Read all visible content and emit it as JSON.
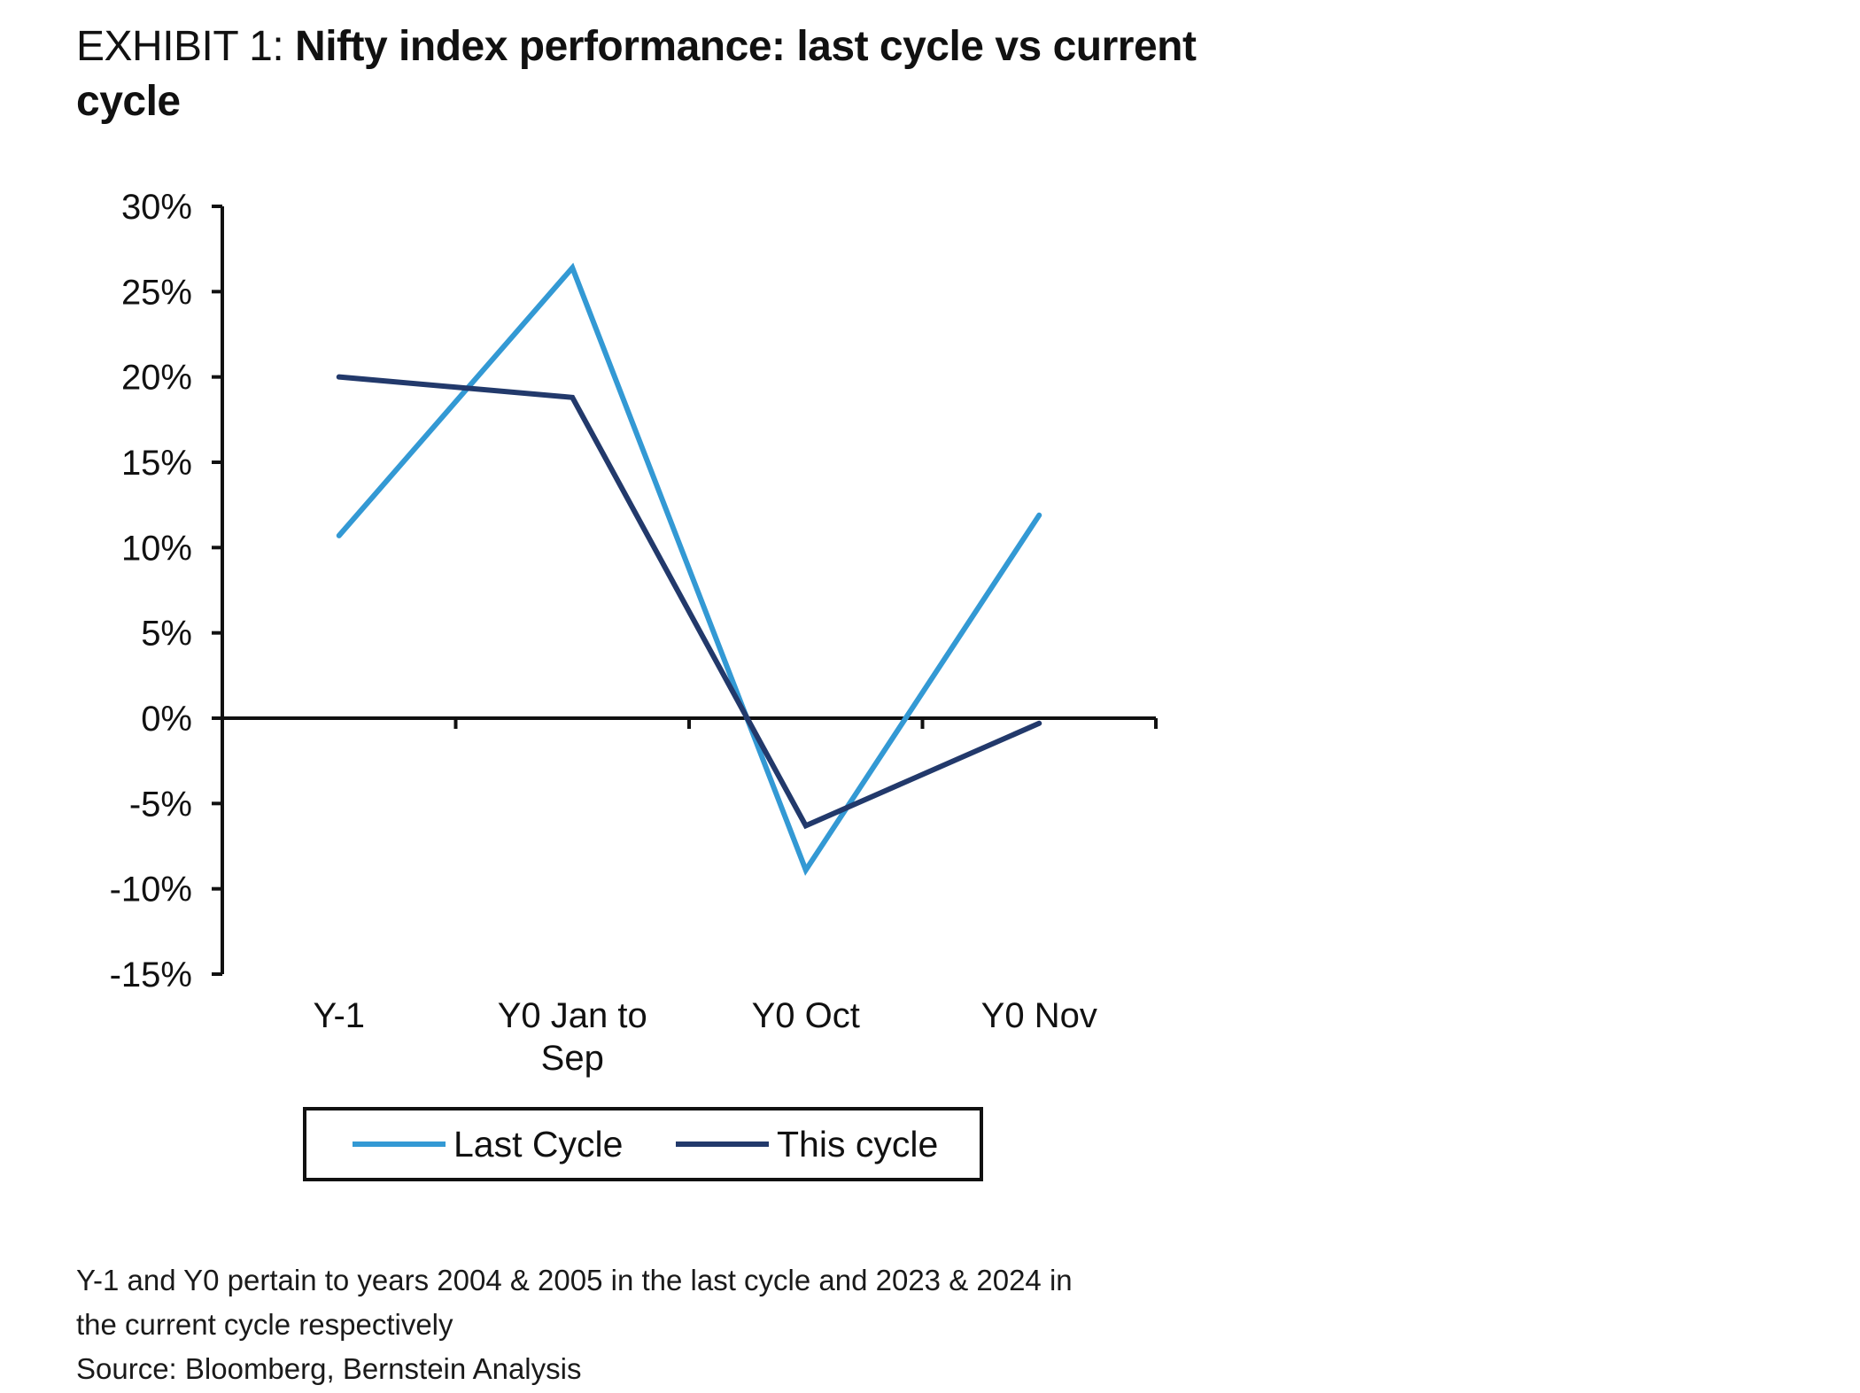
{
  "title": {
    "prefix": "EXHIBIT 1:",
    "main": "Nifty index performance: last cycle vs current cycle"
  },
  "chart_data": {
    "type": "line",
    "categories": [
      "Y-1",
      "Y0 Jan to Sep",
      "Y0 Oct",
      "Y0 Nov"
    ],
    "series": [
      {
        "name": "Last Cycle",
        "color": "#3399d4",
        "values": [
          10.7,
          26.4,
          -8.9,
          11.9
        ]
      },
      {
        "name": "This cycle",
        "color": "#22396b",
        "values": [
          20.0,
          18.8,
          -6.3,
          -0.3
        ]
      }
    ],
    "y_ticks": [
      "30%",
      "25%",
      "20%",
      "15%",
      "10%",
      "5%",
      "0%",
      "-5%",
      "-10%",
      "-15%"
    ],
    "ylim": [
      -15,
      30
    ],
    "ystep": 5,
    "xlabel": "",
    "ylabel": "",
    "grid": false,
    "legend_position": "bottom"
  },
  "footnotes": {
    "line1": "Y-1 and Y0 pertain to years 2004 & 2005 in the last cycle and 2023 & 2024 in",
    "line2": "the current cycle respectively",
    "source": "Source: Bloomberg, Bernstein Analysis"
  }
}
